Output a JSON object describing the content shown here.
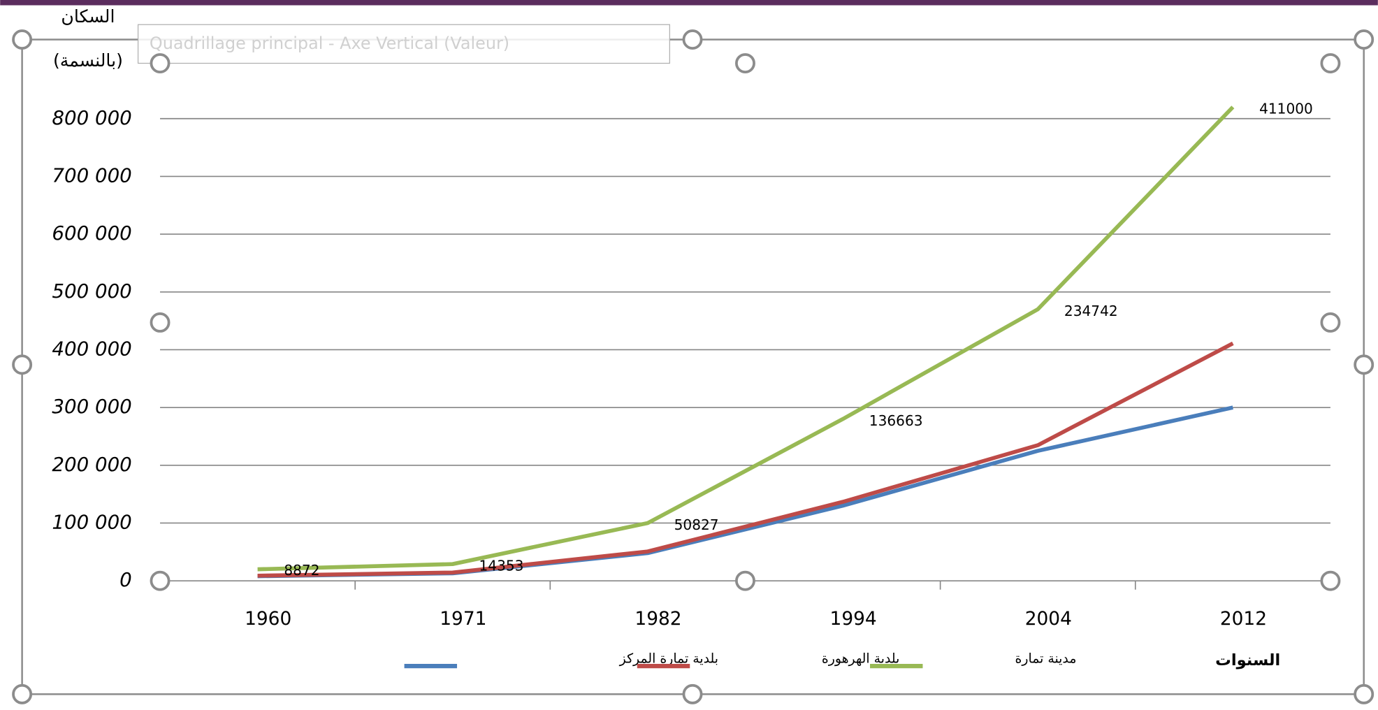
{
  "tooltip": "Quadrillage principal - Axe Vertical (Valeur)",
  "chart_data": {
    "type": "line",
    "y_label": [
      "السكان",
      "(بالنسمة)"
    ],
    "x_label": "السنوات",
    "categories": [
      "1960",
      "1971",
      "1982",
      "1994",
      "2004",
      "2012"
    ],
    "series": [
      {
        "name": "بلدية تمارة المركز",
        "color": "#4a7ebb",
        "values": [
          8000,
          13000,
          48000,
          130000,
          225000,
          300000
        ]
      },
      {
        "name": "بلدية الهرهورة",
        "color": "#be4b48",
        "values": [
          8872,
          14353,
          50827,
          136663,
          234742,
          411000
        ],
        "data_labels": true
      },
      {
        "name": "مدينة تمارة",
        "color": "#98b954",
        "values": [
          20000,
          29000,
          100000,
          280000,
          470000,
          820000
        ]
      }
    ],
    "ylim": [
      0,
      800000
    ],
    "yticks": [
      0,
      {
        "value": 100000,
        "label": "100 000"
      },
      {
        "value": 200000,
        "label": "200 000"
      },
      {
        "value": 300000,
        "label": "300 000"
      },
      {
        "value": 400000,
        "label": "400 000"
      },
      {
        "value": 500000,
        "label": "500 000"
      },
      {
        "value": 600000,
        "label": "600 000"
      },
      {
        "value": 700000,
        "label": "700 000"
      },
      {
        "value": 800000,
        "label": "800 000"
      }
    ],
    "grid": true
  }
}
